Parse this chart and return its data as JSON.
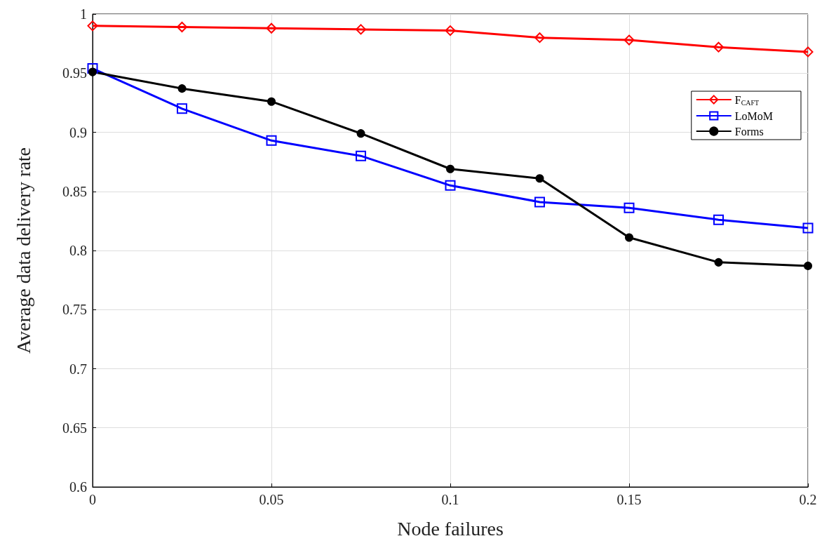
{
  "chart_data": {
    "type": "line",
    "xlabel": "Node failures",
    "ylabel": "Average data delivery rate",
    "x": [
      0,
      0.025,
      0.05,
      0.075,
      0.1,
      0.125,
      0.15,
      0.175,
      0.2
    ],
    "series": [
      {
        "name": "F$_{CAFT}$",
        "color": "#ff0000",
        "marker": "diamond",
        "values": [
          0.99,
          0.989,
          0.988,
          0.987,
          0.986,
          0.98,
          0.978,
          0.972,
          0.968
        ]
      },
      {
        "name": "LoMoM",
        "color": "#0000ff",
        "marker": "square",
        "values": [
          0.954,
          0.92,
          0.893,
          0.88,
          0.855,
          0.841,
          0.836,
          0.826,
          0.819
        ]
      },
      {
        "name": "Forms",
        "color": "#000000",
        "marker": "circle",
        "values": [
          0.951,
          0.937,
          0.926,
          0.899,
          0.869,
          0.861,
          0.811,
          0.79,
          0.787
        ]
      }
    ],
    "xlim": [
      0,
      0.2
    ],
    "xticks": [
      0,
      0.05,
      0.1,
      0.15,
      0.2
    ],
    "ylim": [
      0.6,
      1
    ],
    "yticks": [
      0.6,
      0.65,
      0.7,
      0.75,
      0.8,
      0.85,
      0.9,
      0.95,
      1
    ],
    "grid": true,
    "legend": "top right",
    "line_style": "solid"
  }
}
